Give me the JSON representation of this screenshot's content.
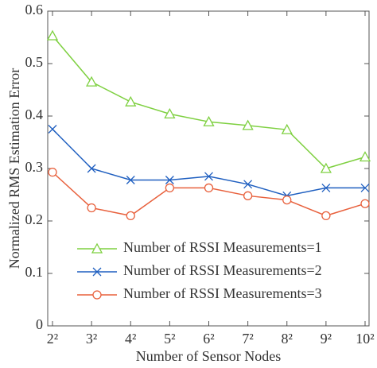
{
  "chart_data": {
    "type": "line",
    "y_label": "Normalized RMS Estimation Error",
    "x_label": "Number of Sensor Nodes",
    "categories": [
      "2²",
      "3²",
      "4²",
      "5²",
      "6²",
      "7²",
      "8²",
      "9²",
      "10²"
    ],
    "series": [
      {
        "name": "Number of RSSI Measurements=1",
        "color": "#7ed040",
        "marker": "triangle",
        "values": [
          0.553,
          0.465,
          0.427,
          0.404,
          0.389,
          0.382,
          0.374,
          0.3,
          0.322
        ]
      },
      {
        "name": "Number of RSSI Measurements=2",
        "color": "#1f5fc0",
        "marker": "cross",
        "values": [
          0.375,
          0.3,
          0.278,
          0.278,
          0.285,
          0.27,
          0.248,
          0.263,
          0.263
        ]
      },
      {
        "name": "Number of RSSI Measurements=3",
        "color": "#e8603c",
        "marker": "circle",
        "values": [
          0.293,
          0.225,
          0.21,
          0.263,
          0.263,
          0.248,
          0.24,
          0.21,
          0.233
        ]
      }
    ],
    "ylim": [
      0,
      0.6
    ],
    "yticks": [
      0,
      0.1,
      0.2,
      0.3,
      0.4,
      0.5,
      0.6
    ],
    "legend": "lower-center"
  }
}
